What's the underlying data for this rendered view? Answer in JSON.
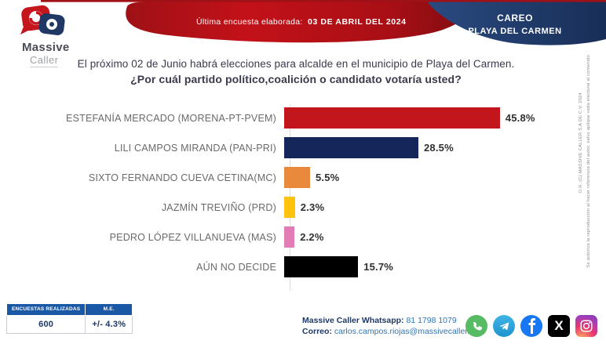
{
  "header": {
    "logo_line1": "Massive",
    "logo_line2": "Caller",
    "last_survey_label": "Última encuesta elaborada:",
    "last_survey_date": "03 DE ABRIL DEL 2024",
    "badge_line1": "CAREO",
    "badge_line2": "PLAYA DEL CARMEN",
    "accent_red": "#C31119",
    "accent_blue": "#1F3A68"
  },
  "question": {
    "line1": "El próximo 02 de Junio habrá elecciones para alcalde en el municipio de  Playa del Carmen.",
    "line2": "¿Por cuál partido político,coalición  o candidato votaría usted?"
  },
  "chart_data": {
    "type": "bar",
    "orientation": "horizontal",
    "title": "¿Por cuál partido político,coalición o candidato votaría usted?",
    "categories": [
      "ESTEFANÍA MERCADO (MORENA-PT-PVEM)",
      "LILI CAMPOS MIRANDA (PAN-PRI)",
      "SIXTO FERNANDO CUEVA CETINA(MC)",
      "JAZMÍN TREVIÑO (PRD)",
      "PEDRO LÓPEZ VILLANUEVA (MAS)",
      "AÚN NO DECIDE"
    ],
    "values": [
      45.8,
      28.5,
      5.5,
      2.3,
      2.2,
      15.7
    ],
    "value_labels": [
      "45.8%",
      "28.5%",
      "5.5%",
      "2.3%",
      "2.2%",
      "15.7%"
    ],
    "bar_colors": [
      "#C3161C",
      "#15265B",
      "#E8893B",
      "#FFC30D",
      "#E27CB5",
      "#000000"
    ],
    "xlim": [
      0,
      50
    ],
    "unit": "percent",
    "grid": false,
    "legend": "none"
  },
  "stats_table": {
    "header1": "ENCUESTAS REALIZADAS",
    "header2": "M.E.",
    "value1": "600",
    "value2": "+/- 4.3%"
  },
  "footer": {
    "whatsapp_label": "Massive Caller Whatsapp:",
    "whatsapp_number": "81 1798 1079",
    "email_label": "Correo:",
    "email_value": "carlos.campos.riojas@massivecaller.com",
    "social_icons": [
      "whatsapp",
      "telegram",
      "facebook",
      "x",
      "instagram"
    ],
    "x_glyph": "X",
    "facebook_glyph": "f"
  },
  "disclaimer": {
    "line1": "D.R. (C) MASSIVE CALLER S.A DE C.V.  2024",
    "line2": "Se autoriza la reproducción al hacer referencia del autor, salvo aplique veda electoral al contenido"
  }
}
